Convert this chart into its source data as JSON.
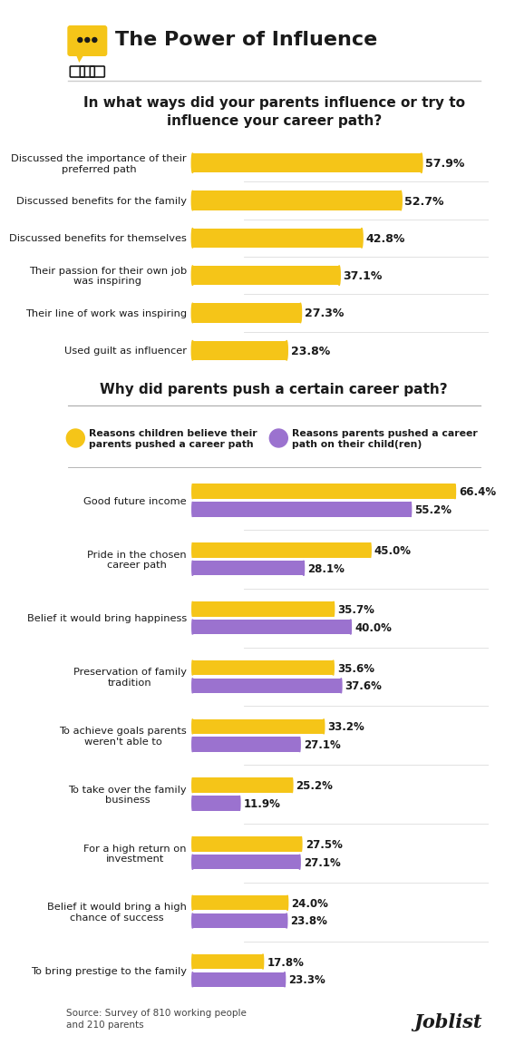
{
  "title": "The Power of Influence",
  "section1_title": "In what ways did your parents influence or try to\ninfluence your career path?",
  "section1_labels": [
    "Discussed the importance of their\npreferred path",
    "Discussed benefits for the family",
    "Discussed benefits for themselves",
    "Their passion for their own job\nwas inspiring",
    "Their line of work was inspiring",
    "Used guilt as influencer"
  ],
  "section1_values": [
    57.9,
    52.7,
    42.8,
    37.1,
    27.3,
    23.8
  ],
  "section1_color": "#F5C518",
  "section2_title": "Why did parents push a certain career path?",
  "section2_labels": [
    "Good future income",
    "Pride in the chosen\ncareer path",
    "Belief it would bring happiness",
    "Preservation of family\ntradition",
    "To achieve goals parents\nweren't able to",
    "To take over the family\nbusiness",
    "For a high return on\ninvestment",
    "Belief it would bring a high\nchance of success",
    "To bring prestige to the family"
  ],
  "section2_yellow_values": [
    66.4,
    45.0,
    35.7,
    35.6,
    33.2,
    25.2,
    27.5,
    24.0,
    17.8
  ],
  "section2_purple_values": [
    55.2,
    28.1,
    40.0,
    37.6,
    27.1,
    11.9,
    27.1,
    23.8,
    23.3
  ],
  "yellow_color": "#F5C518",
  "purple_color": "#9B72CF",
  "legend_yellow_label": "Reasons children believe their\nparents pushed a career path",
  "legend_purple_label": "Reasons parents pushed a career\npath on their child(ren)",
  "source_text": "Source: Survey of 810 working people\nand 210 parents",
  "bg_color": "#FFFFFF",
  "text_color": "#1a1a1a",
  "bar_max": 75
}
